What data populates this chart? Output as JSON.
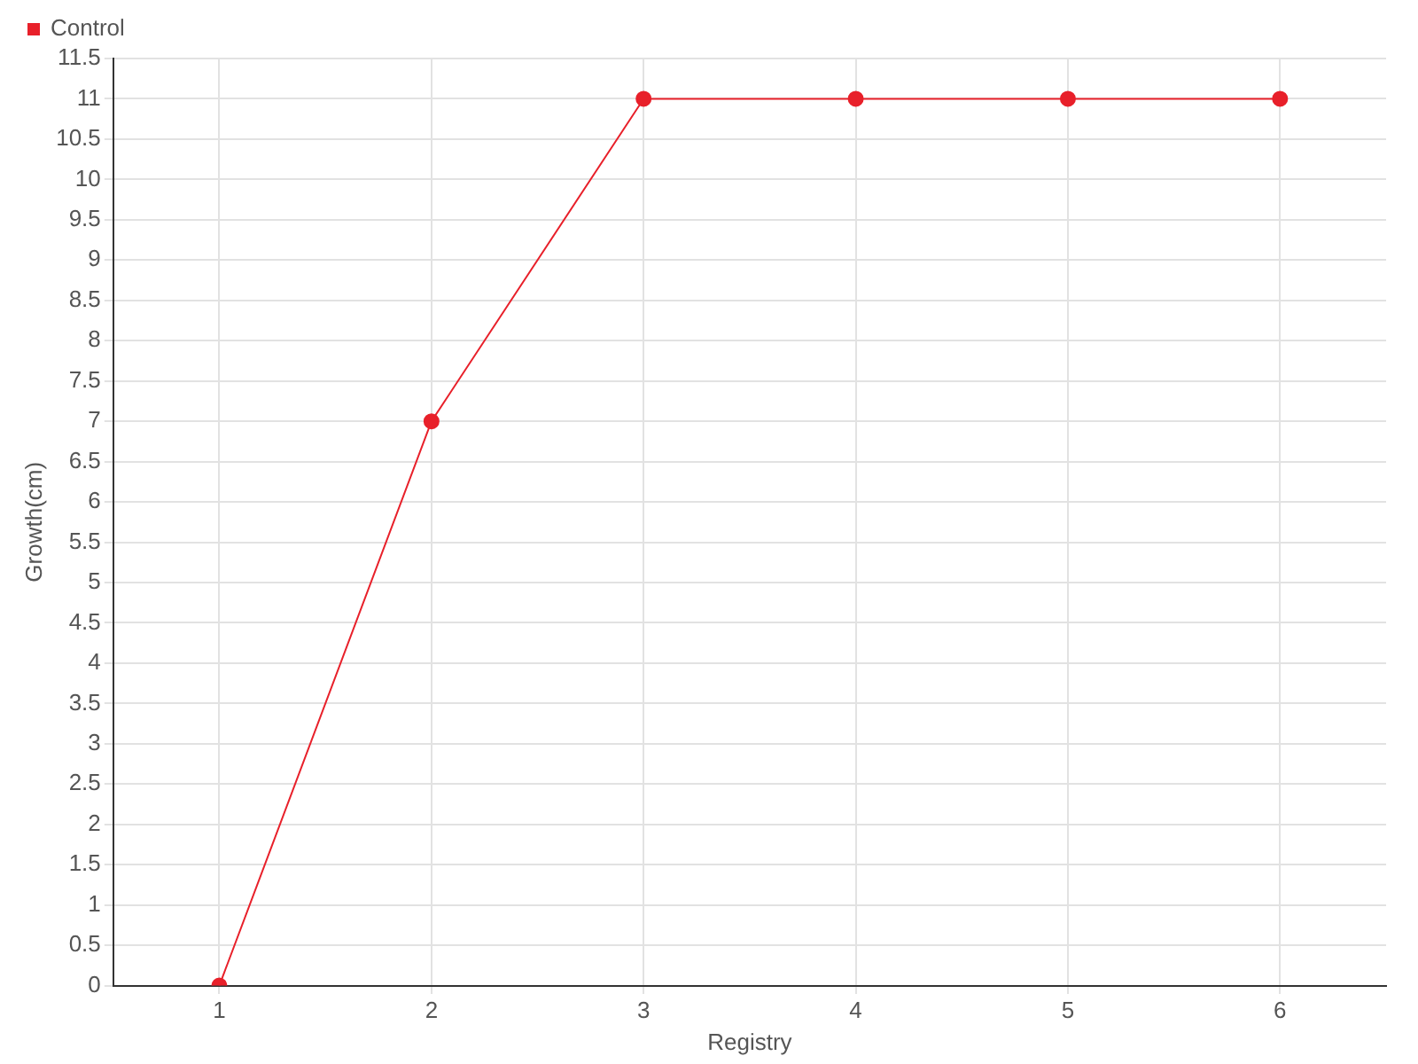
{
  "chart_data": {
    "type": "line",
    "xlabel": "Registry",
    "ylabel": "Growth(cm)",
    "categories": [
      "1",
      "2",
      "3",
      "4",
      "5",
      "6"
    ],
    "series": [
      {
        "name": "Control",
        "color": "#e8202a",
        "values": [
          0,
          7,
          11,
          11,
          11,
          11
        ]
      }
    ],
    "ylim": [
      0,
      11.5
    ],
    "yticks": [
      0,
      0.5,
      1,
      1.5,
      2,
      2.5,
      3,
      3.5,
      4,
      4.5,
      5,
      5.5,
      6,
      6.5,
      7,
      7.5,
      8,
      8.5,
      9,
      9.5,
      10,
      10.5,
      11,
      11.5
    ],
    "grid": true,
    "legend": "top left",
    "marker": "circle",
    "line_style": "solid"
  }
}
